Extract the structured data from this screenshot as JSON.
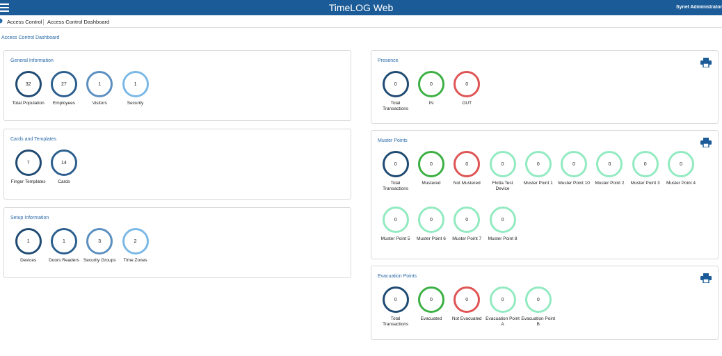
{
  "header": {
    "title": "TimeLOG Web",
    "user": "Synel Administrator"
  },
  "breadcrumb": [
    "Access Control",
    "Access Control Dashboard"
  ],
  "page_title": "Access Control Dashboard",
  "left_panels": [
    {
      "title": "General Information",
      "items": [
        {
          "value": 32,
          "label": "Total Population",
          "color": "#1f4a72"
        },
        {
          "value": 27,
          "label": "Employees",
          "color": "#2b5f8f"
        },
        {
          "value": 1,
          "label": "Visitors",
          "color": "#5b8fc0"
        },
        {
          "value": 1,
          "label": "Security",
          "color": "#7ab8e6"
        }
      ]
    },
    {
      "title": "Cards and Templates",
      "items": [
        {
          "value": 7,
          "label": "Finger Templates",
          "color": "#1f4a72"
        },
        {
          "value": 14,
          "label": "Cards",
          "color": "#2b5f8f"
        }
      ]
    },
    {
      "title": "Setup Information",
      "items": [
        {
          "value": 1,
          "label": "Devices",
          "color": "#1f4a72"
        },
        {
          "value": 1,
          "label": "Doors Readers",
          "color": "#2b5f8f"
        },
        {
          "value": 3,
          "label": "Security Groups",
          "color": "#5b8fc0"
        },
        {
          "value": 2,
          "label": "Time Zones",
          "color": "#7ab8e6"
        }
      ]
    }
  ],
  "right_panels": [
    {
      "title": "Presence",
      "items": [
        {
          "value": 0,
          "label": "Total Transactions",
          "color": "#1f4a72"
        },
        {
          "value": 0,
          "label": "IN",
          "color": "#3cb043"
        },
        {
          "value": 0,
          "label": "OUT",
          "color": "#e05353"
        }
      ]
    },
    {
      "title": "Muster Points",
      "items": [
        {
          "value": 0,
          "label": "Total Transactions",
          "color": "#1f4a72"
        },
        {
          "value": 0,
          "label": "Mustered",
          "color": "#3cb043"
        },
        {
          "value": 0,
          "label": "Not Mustered",
          "color": "#e05353"
        },
        {
          "value": 0,
          "label": "Flotta Test Device",
          "color": "#92eac0"
        },
        {
          "value": 0,
          "label": "Muster Point 1",
          "color": "#92eac0"
        },
        {
          "value": 0,
          "label": "Muster Point 10",
          "color": "#92eac0"
        },
        {
          "value": 0,
          "label": "Muster Point 2",
          "color": "#92eac0"
        },
        {
          "value": 0,
          "label": "Muster Point 3",
          "color": "#92eac0"
        },
        {
          "value": 0,
          "label": "Muster Point 4",
          "color": "#92eac0"
        },
        {
          "value": 0,
          "label": "Muster Point 5",
          "color": "#92eac0"
        },
        {
          "value": 0,
          "label": "Muster Point 6",
          "color": "#92eac0"
        },
        {
          "value": 0,
          "label": "Muster Point 7",
          "color": "#92eac0"
        },
        {
          "value": 0,
          "label": "Muster Point 8",
          "color": "#92eac0"
        }
      ]
    },
    {
      "title": "Evacuation Points",
      "items": [
        {
          "value": 0,
          "label": "Total Transactions",
          "color": "#1f4a72"
        },
        {
          "value": 0,
          "label": "Evacuated",
          "color": "#3cb043"
        },
        {
          "value": 0,
          "label": "Not Evacuated",
          "color": "#e05353"
        },
        {
          "value": 0,
          "label": "Evacuation Point A",
          "color": "#92eac0"
        },
        {
          "value": 0,
          "label": "Evacuation Point B",
          "color": "#92eac0"
        }
      ]
    }
  ]
}
